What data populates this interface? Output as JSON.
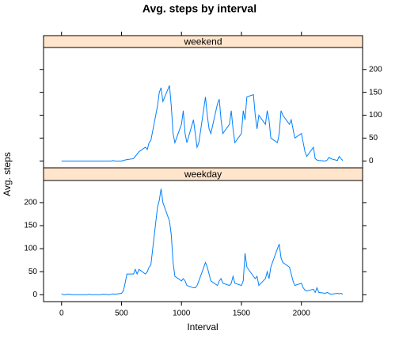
{
  "chart_data": {
    "type": "line",
    "title": "Avg. steps by interval",
    "xlabel": "Interval",
    "ylabel": "Avg. steps",
    "x": [
      0,
      15,
      30,
      45,
      100,
      115,
      130,
      145,
      200,
      215,
      230,
      245,
      300,
      315,
      330,
      345,
      400,
      415,
      430,
      445,
      500,
      515,
      530,
      545,
      600,
      615,
      630,
      645,
      700,
      715,
      730,
      745,
      800,
      815,
      830,
      845,
      900,
      915,
      930,
      945,
      1000,
      1015,
      1030,
      1045,
      1100,
      1115,
      1130,
      1145,
      1200,
      1215,
      1230,
      1245,
      1300,
      1315,
      1330,
      1345,
      1400,
      1415,
      1430,
      1445,
      1500,
      1515,
      1530,
      1545,
      1600,
      1615,
      1630,
      1645,
      1700,
      1715,
      1730,
      1745,
      1800,
      1815,
      1830,
      1845,
      1900,
      1915,
      1930,
      1945,
      2000,
      2015,
      2030,
      2045,
      2100,
      2115,
      2130,
      2145,
      2200,
      2215,
      2230,
      2245,
      2300,
      2315,
      2330,
      2345
    ],
    "series": [
      {
        "name": "weekend",
        "color": "#0080ff",
        "values": [
          0,
          0,
          0,
          0,
          0,
          0,
          0,
          0,
          0,
          0,
          0,
          0,
          0,
          0,
          0,
          0,
          0,
          0,
          1,
          0,
          0,
          1,
          2,
          3,
          5,
          10,
          15,
          20,
          30,
          25,
          40,
          45,
          120,
          150,
          160,
          130,
          165,
          120,
          60,
          40,
          80,
          110,
          60,
          40,
          90,
          60,
          30,
          40,
          140,
          100,
          70,
          60,
          125,
          135,
          90,
          60,
          80,
          110,
          70,
          40,
          60,
          110,
          90,
          140,
          145,
          100,
          70,
          100,
          80,
          110,
          90,
          50,
          40,
          60,
          110,
          100,
          80,
          90,
          70,
          50,
          60,
          40,
          20,
          10,
          30,
          5,
          2,
          1,
          0,
          2,
          8,
          5,
          1,
          10,
          5,
          1
        ]
      },
      {
        "name": "weekday",
        "color": "#0080ff",
        "values": [
          2,
          0,
          0,
          1,
          0,
          0,
          0,
          0,
          0,
          0,
          1,
          0,
          0,
          0,
          0,
          1,
          0,
          1,
          2,
          1,
          3,
          8,
          25,
          45,
          45,
          55,
          45,
          55,
          45,
          50,
          60,
          65,
          190,
          205,
          230,
          200,
          160,
          130,
          70,
          40,
          30,
          35,
          30,
          20,
          15,
          15,
          20,
          30,
          70,
          60,
          45,
          30,
          20,
          30,
          35,
          25,
          20,
          25,
          40,
          25,
          20,
          30,
          90,
          60,
          40,
          35,
          40,
          20,
          35,
          50,
          35,
          60,
          100,
          110,
          80,
          70,
          60,
          45,
          30,
          20,
          25,
          15,
          10,
          8,
          12,
          5,
          15,
          5,
          3,
          5,
          3,
          1,
          3,
          2,
          3,
          1
        ]
      }
    ],
    "xlim": [
      -150,
      2510
    ],
    "xticks": [
      0,
      500,
      1000,
      1500,
      2000
    ],
    "ylim": [
      -15,
      248
    ],
    "yticks": [
      0,
      50,
      100,
      150,
      200
    ],
    "strip_color": "#ffe5cc"
  }
}
